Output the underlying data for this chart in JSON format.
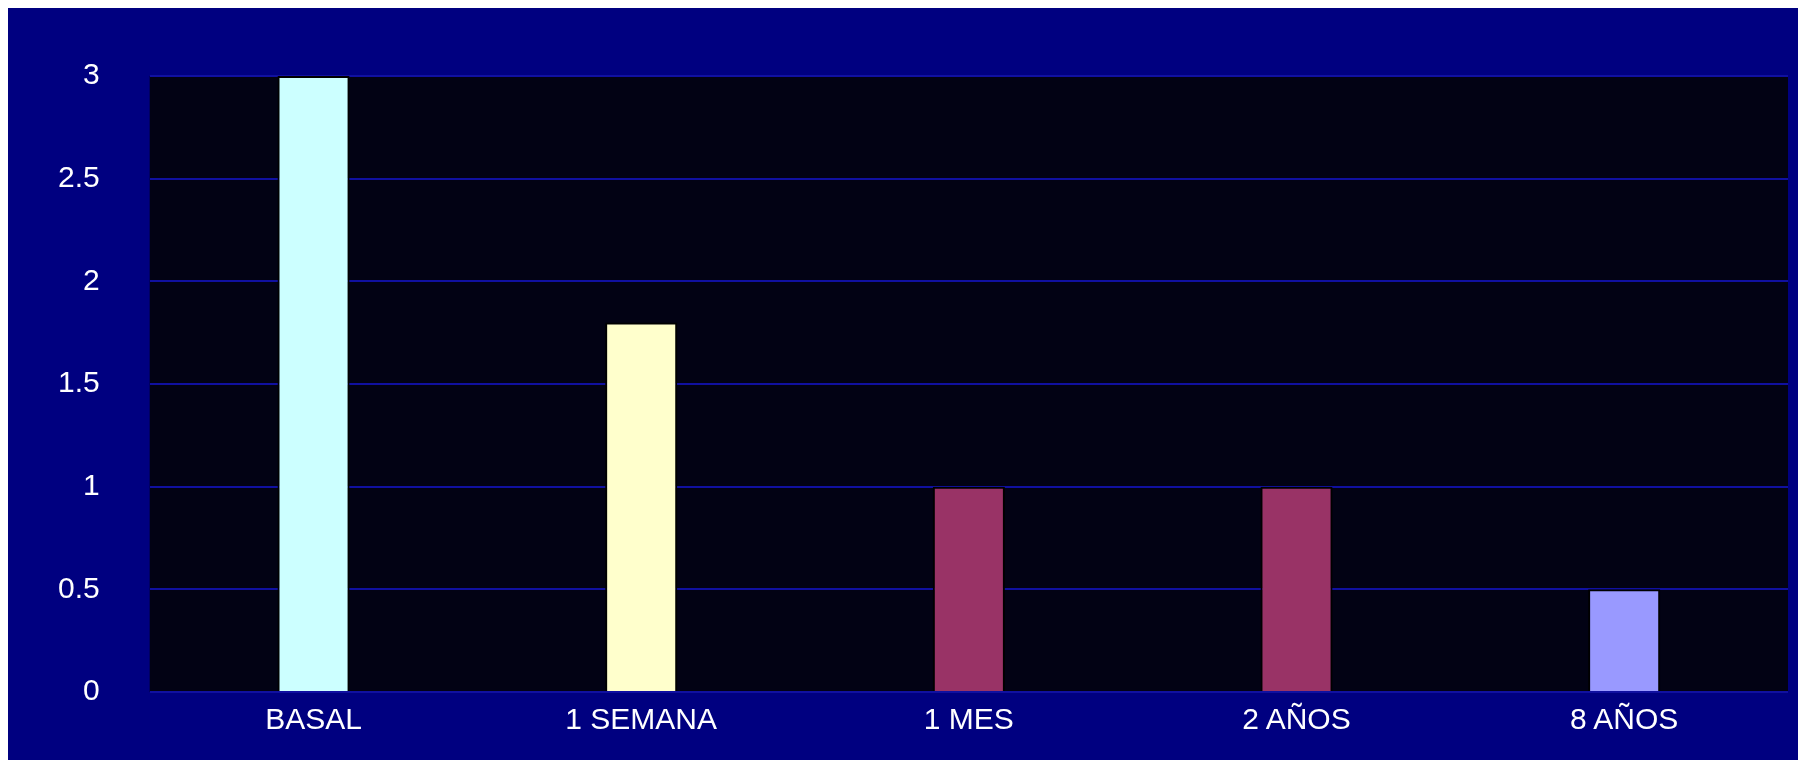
{
  "chart_data": {
    "type": "bar",
    "categories": [
      "BASAL",
      "1 SEMANA",
      "1 MES",
      "2 AÑOS",
      "8 AÑOS"
    ],
    "values": [
      3,
      1.8,
      1,
      1,
      0.5
    ],
    "colors": [
      "#ccffff",
      "#ffffcc",
      "#993366",
      "#993366",
      "#9999ff"
    ],
    "ylim": [
      0,
      3
    ],
    "yticks": [
      0,
      0.5,
      1,
      1.5,
      2,
      2.5,
      3
    ],
    "grid": "y",
    "legend": false
  }
}
